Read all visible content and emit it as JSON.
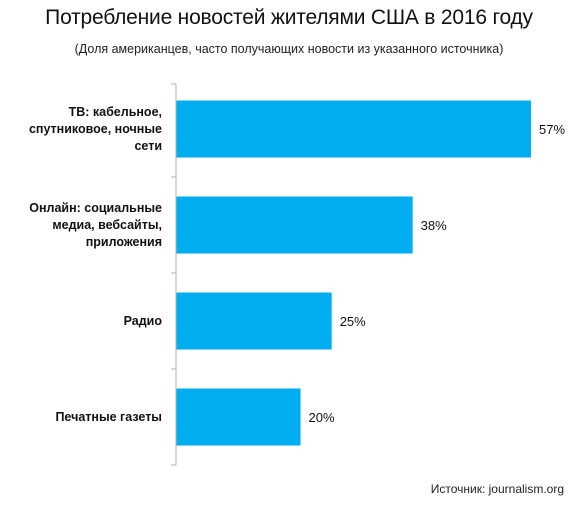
{
  "chart_data": {
    "type": "bar",
    "orientation": "horizontal",
    "title": "Потребление новостей жителями США в 2016 году",
    "subtitle": "(Доля американцев, часто получающих новости из указанного источника)",
    "categories": [
      [
        "ТВ: кабельное,",
        "спутниковое, ночные",
        "сети"
      ],
      [
        "Онлайн: социальные",
        "медиа, вебсайты,",
        "приложения"
      ],
      [
        "Радио"
      ],
      [
        "Печатные газеты"
      ]
    ],
    "values": [
      57,
      38,
      25,
      20
    ],
    "value_labels": [
      "57%",
      "38%",
      "25%",
      "20%"
    ],
    "xlim": [
      0,
      57
    ],
    "grid": false,
    "legend": "none",
    "bar_color": "#00aeef",
    "axis_color": "#b0b0b0"
  },
  "source": "Источник: journalism.org"
}
